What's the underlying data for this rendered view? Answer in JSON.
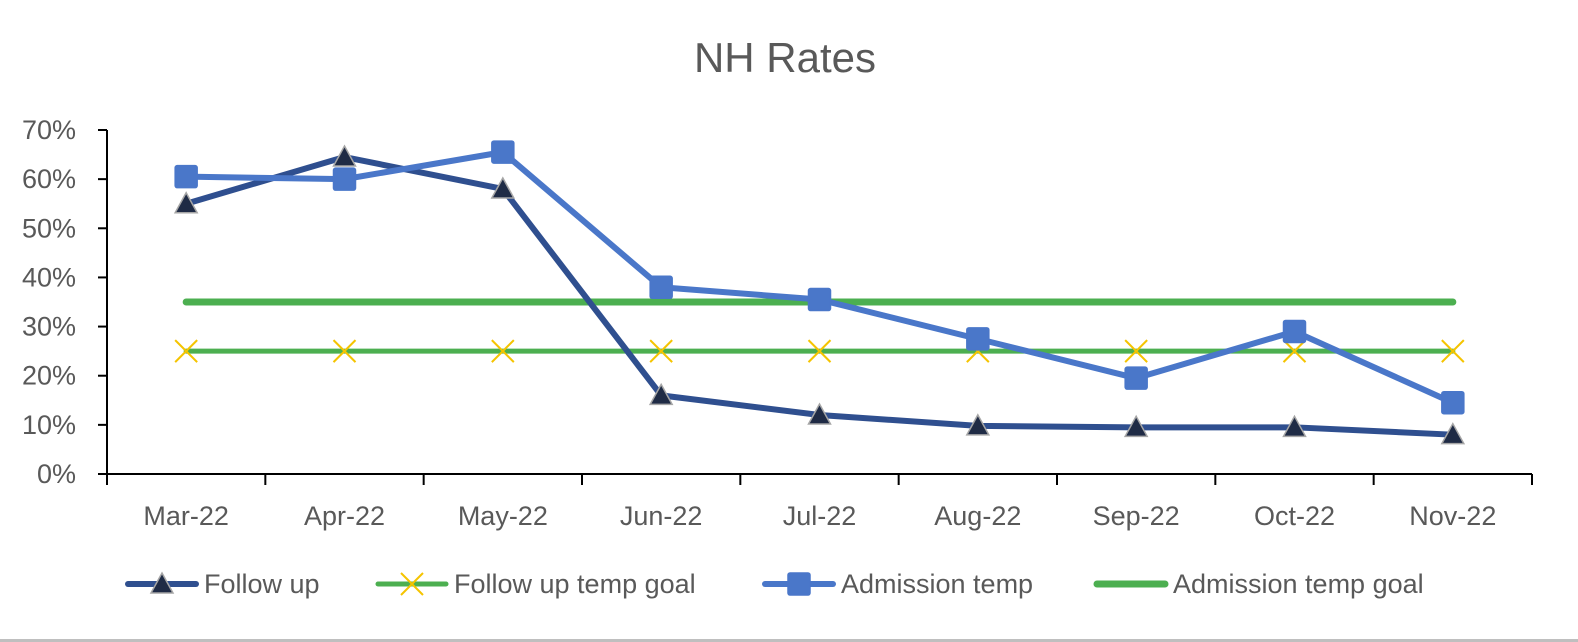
{
  "chart_data": {
    "type": "line",
    "title": "NH Rates",
    "xlabel": "",
    "ylabel": "",
    "categories": [
      "Mar-22",
      "Apr-22",
      "May-22",
      "Jun-22",
      "Jul-22",
      "Aug-22",
      "Sep-22",
      "Oct-22",
      "Nov-22"
    ],
    "ylim": [
      0,
      0.7
    ],
    "yticks": [
      "0%",
      "10%",
      "20%",
      "30%",
      "40%",
      "50%",
      "60%",
      "70%"
    ],
    "grid": false,
    "legend_position": "bottom",
    "series": [
      {
        "name": "Follow up",
        "values": [
          0.55,
          0.645,
          0.58,
          0.16,
          0.12,
          0.098,
          0.095,
          0.095,
          0.08
        ],
        "color": "#2f4f8f",
        "marker": "triangle"
      },
      {
        "name": "Follow up temp goal",
        "values": [
          0.25,
          0.25,
          0.25,
          0.25,
          0.25,
          0.25,
          0.25,
          0.25,
          0.25
        ],
        "color": "#4caf50",
        "marker": "x",
        "marker_color": "#f5c400"
      },
      {
        "name": "Admission temp",
        "values": [
          0.605,
          0.6,
          0.655,
          0.38,
          0.355,
          0.275,
          0.195,
          0.29,
          0.145
        ],
        "color": "#4a77c9",
        "marker": "square"
      },
      {
        "name": "Admission temp goal",
        "values": [
          0.35,
          0.35,
          0.35,
          0.35,
          0.35,
          0.35,
          0.35,
          0.35,
          0.35
        ],
        "color": "#4caf50",
        "marker": "none"
      }
    ]
  }
}
